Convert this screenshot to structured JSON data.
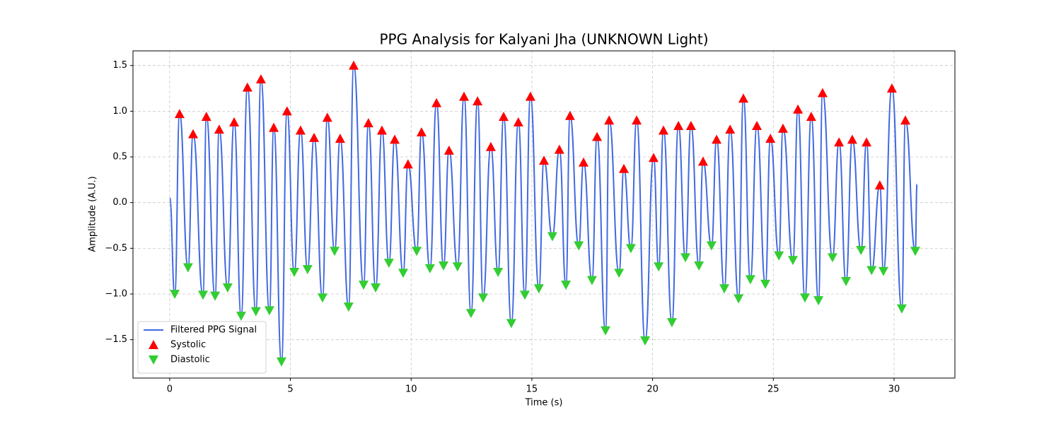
{
  "chart_data": {
    "type": "line",
    "title": "PPG Analysis for Kalyani Jha (UNKNOWN Light)",
    "xlabel": "Time (s)",
    "ylabel": "Amplitude (A.U.)",
    "xlim": [
      -1.52,
      32.52
    ],
    "ylim": [
      -1.92,
      1.66
    ],
    "xticks": [
      0,
      5,
      10,
      15,
      20,
      25,
      30
    ],
    "yticks": [
      {
        "value": 1.5,
        "label": "1.5"
      },
      {
        "value": 1.0,
        "label": "1.0"
      },
      {
        "value": 0.5,
        "label": "0.5"
      },
      {
        "value": 0.0,
        "label": "0.0"
      },
      {
        "value": -0.5,
        "label": "−0.5"
      },
      {
        "value": -1.0,
        "label": "−1.0"
      },
      {
        "value": -1.5,
        "label": "−1.5"
      }
    ],
    "grid": true,
    "legend": "lower left",
    "series": [
      {
        "name": "Filtered PPG Signal",
        "color": "#4169e1",
        "type": "line",
        "x": [
          0,
          0.21,
          0.41,
          0.76,
          0.97,
          1.38,
          1.52,
          1.88,
          2.05,
          2.4,
          2.67,
          2.96,
          3.22,
          3.57,
          3.78,
          4.13,
          4.31,
          4.63,
          4.86,
          5.16,
          5.42,
          5.71,
          5.98,
          6.33,
          6.53,
          6.83,
          7.06,
          7.41,
          7.62,
          8.03,
          8.23,
          8.53,
          8.79,
          9.08,
          9.32,
          9.67,
          9.87,
          10.23,
          10.43,
          10.78,
          11.05,
          11.34,
          11.57,
          11.92,
          12.19,
          12.48,
          12.75,
          12.98,
          13.3,
          13.6,
          13.83,
          14.15,
          14.44,
          14.71,
          14.94,
          15.29,
          15.5,
          15.85,
          16.14,
          16.41,
          16.58,
          16.94,
          17.14,
          17.49,
          17.7,
          18.05,
          18.2,
          18.61,
          18.81,
          19.1,
          19.34,
          19.69,
          20.04,
          20.25,
          20.45,
          20.8,
          21.07,
          21.36,
          21.59,
          21.92,
          22.09,
          22.44,
          22.65,
          22.97,
          23.21,
          23.56,
          23.76,
          24.05,
          24.32,
          24.67,
          24.88,
          25.23,
          25.4,
          25.81,
          26.02,
          26.31,
          26.57,
          26.87,
          27.04,
          27.45,
          27.72,
          28.01,
          28.27,
          28.63,
          28.86,
          29.07,
          29.41,
          29.56,
          29.91,
          30.32,
          30.47,
          30.88,
          30.95
        ],
        "values": [
          0.05,
          -1.0,
          0.97,
          -0.71,
          0.75,
          -1.01,
          0.94,
          -1.02,
          0.8,
          -0.93,
          0.88,
          -1.24,
          1.26,
          -1.19,
          1.35,
          -1.18,
          0.82,
          -1.74,
          1.0,
          -0.76,
          0.79,
          -0.73,
          0.71,
          -1.04,
          0.93,
          -0.53,
          0.7,
          -1.14,
          1.5,
          -0.9,
          0.87,
          -0.93,
          0.79,
          -0.66,
          0.69,
          -0.77,
          0.42,
          -0.53,
          0.77,
          -0.72,
          1.09,
          -0.69,
          0.57,
          -0.7,
          1.16,
          -1.21,
          1.11,
          -1.04,
          0.61,
          -0.76,
          0.94,
          -1.32,
          0.88,
          -1.01,
          1.16,
          -0.94,
          0.46,
          -0.37,
          0.58,
          -0.9,
          0.95,
          -0.47,
          0.44,
          -0.85,
          0.72,
          -1.4,
          0.9,
          -0.77,
          0.37,
          -0.5,
          0.9,
          -1.51,
          0.49,
          -0.7,
          0.79,
          -1.31,
          0.84,
          -0.6,
          0.84,
          -0.69,
          0.45,
          -0.47,
          0.69,
          -0.94,
          0.8,
          -1.05,
          1.14,
          -0.84,
          0.84,
          -0.89,
          0.7,
          -0.58,
          0.81,
          -0.63,
          1.02,
          -1.04,
          0.94,
          -1.07,
          1.2,
          -0.6,
          0.66,
          -0.86,
          0.69,
          -0.52,
          0.66,
          -0.74,
          0.19,
          -0.75,
          1.25,
          -1.16,
          0.9,
          -0.53,
          0.2
        ]
      },
      {
        "name": "Systolic",
        "color": "#ff0000",
        "type": "scatter",
        "marker": "triangle-up",
        "x": [
          0.41,
          0.97,
          1.52,
          2.05,
          2.67,
          3.22,
          3.78,
          4.31,
          4.86,
          5.42,
          5.98,
          6.53,
          7.06,
          7.62,
          8.23,
          8.79,
          9.32,
          9.87,
          10.43,
          11.05,
          11.57,
          12.19,
          12.75,
          13.3,
          13.83,
          14.44,
          14.94,
          15.5,
          16.14,
          16.58,
          17.14,
          17.7,
          18.2,
          18.81,
          19.34,
          20.04,
          20.45,
          21.07,
          21.59,
          22.09,
          22.65,
          23.21,
          23.76,
          24.32,
          24.88,
          25.4,
          26.02,
          26.57,
          27.04,
          27.72,
          28.27,
          28.86,
          29.41,
          29.91,
          30.47
        ],
        "values": [
          0.97,
          0.75,
          0.94,
          0.8,
          0.88,
          1.26,
          1.35,
          0.82,
          1.0,
          0.79,
          0.71,
          0.93,
          0.7,
          1.5,
          0.87,
          0.79,
          0.69,
          0.42,
          0.77,
          1.09,
          0.57,
          1.16,
          1.11,
          0.61,
          0.94,
          0.88,
          1.16,
          0.46,
          0.58,
          0.95,
          0.44,
          0.72,
          0.9,
          0.37,
          0.9,
          0.49,
          0.79,
          0.84,
          0.84,
          0.45,
          0.69,
          0.8,
          1.14,
          0.84,
          0.7,
          0.81,
          1.02,
          0.94,
          1.2,
          0.66,
          0.69,
          0.66,
          0.19,
          1.25,
          0.9
        ]
      },
      {
        "name": "Diastolic",
        "color": "#32cd32",
        "type": "scatter",
        "marker": "triangle-down",
        "x": [
          0.21,
          0.76,
          1.38,
          1.88,
          2.4,
          2.96,
          3.57,
          4.13,
          4.63,
          5.16,
          5.71,
          6.33,
          6.83,
          7.41,
          8.03,
          8.53,
          9.08,
          9.67,
          10.23,
          10.78,
          11.34,
          11.92,
          12.48,
          12.98,
          13.6,
          14.15,
          14.71,
          15.29,
          15.85,
          16.41,
          16.94,
          17.49,
          18.05,
          18.61,
          19.1,
          19.69,
          20.25,
          20.8,
          21.36,
          21.92,
          22.44,
          22.97,
          23.56,
          24.05,
          24.67,
          25.23,
          25.81,
          26.31,
          26.87,
          27.45,
          28.01,
          28.63,
          29.07,
          29.56,
          30.32,
          30.88
        ],
        "values": [
          -1.0,
          -0.71,
          -1.01,
          -1.02,
          -0.93,
          -1.24,
          -1.19,
          -1.18,
          -1.74,
          -0.76,
          -0.73,
          -1.04,
          -0.53,
          -1.14,
          -0.9,
          -0.93,
          -0.66,
          -0.77,
          -0.53,
          -0.72,
          -0.69,
          -0.7,
          -1.21,
          -1.04,
          -0.76,
          -1.32,
          -1.01,
          -0.94,
          -0.37,
          -0.9,
          -0.47,
          -0.85,
          -1.4,
          -0.77,
          -0.5,
          -1.51,
          -0.7,
          -1.31,
          -0.6,
          -0.69,
          -0.47,
          -0.94,
          -1.05,
          -0.84,
          -0.89,
          -0.58,
          -0.63,
          -1.04,
          -1.07,
          -0.6,
          -0.86,
          -0.52,
          -0.74,
          -0.75,
          -1.16,
          -0.53
        ]
      }
    ]
  }
}
